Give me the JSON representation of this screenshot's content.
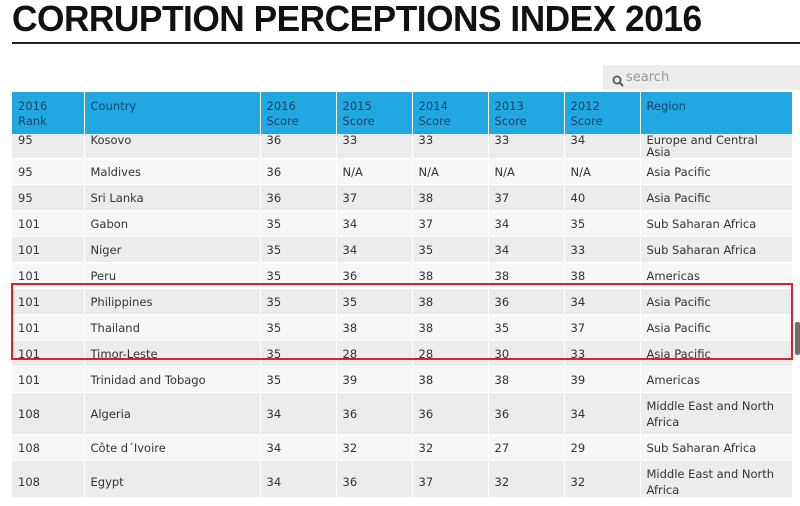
{
  "title": "CORRUPTION PERCEPTIONS INDEX 2016",
  "search": {
    "placeholder": "search"
  },
  "columns": [
    [
      "2016",
      "Rank"
    ],
    [
      "Country",
      ""
    ],
    [
      "2016",
      "Score"
    ],
    [
      "2015",
      "Score"
    ],
    [
      "2014",
      "Score"
    ],
    [
      "2013",
      "Score"
    ],
    [
      "2012",
      "Score"
    ],
    [
      "Region",
      ""
    ]
  ],
  "rows": [
    {
      "rank": "95",
      "country": "Kosovo",
      "s2016": "36",
      "s2015": "33",
      "s2014": "33",
      "s2013": "33",
      "s2012": "34",
      "region": "Europe and Central Asia"
    },
    {
      "rank": "95",
      "country": "Maldives",
      "s2016": "36",
      "s2015": "N/A",
      "s2014": "N/A",
      "s2013": "N/A",
      "s2012": "N/A",
      "region": "Asia Pacific"
    },
    {
      "rank": "95",
      "country": "Sri Lanka",
      "s2016": "36",
      "s2015": "37",
      "s2014": "38",
      "s2013": "37",
      "s2012": "40",
      "region": "Asia Pacific"
    },
    {
      "rank": "101",
      "country": "Gabon",
      "s2016": "35",
      "s2015": "34",
      "s2014": "37",
      "s2013": "34",
      "s2012": "35",
      "region": "Sub Saharan Africa"
    },
    {
      "rank": "101",
      "country": "Niger",
      "s2016": "35",
      "s2015": "34",
      "s2014": "35",
      "s2013": "34",
      "s2012": "33",
      "region": "Sub Saharan Africa"
    },
    {
      "rank": "101",
      "country": "Peru",
      "s2016": "35",
      "s2015": "36",
      "s2014": "38",
      "s2013": "38",
      "s2012": "38",
      "region": "Americas"
    },
    {
      "rank": "101",
      "country": "Philippines",
      "s2016": "35",
      "s2015": "35",
      "s2014": "38",
      "s2013": "36",
      "s2012": "34",
      "region": "Asia Pacific"
    },
    {
      "rank": "101",
      "country": "Thailand",
      "s2016": "35",
      "s2015": "38",
      "s2014": "38",
      "s2013": "35",
      "s2012": "37",
      "region": "Asia Pacific"
    },
    {
      "rank": "101",
      "country": "Timor-Leste",
      "s2016": "35",
      "s2015": "28",
      "s2014": "28",
      "s2013": "30",
      "s2012": "33",
      "region": "Asia Pacific"
    },
    {
      "rank": "101",
      "country": "Trinidad and Tobago",
      "s2016": "35",
      "s2015": "39",
      "s2014": "38",
      "s2013": "38",
      "s2012": "39",
      "region": "Americas"
    },
    {
      "rank": "108",
      "country": "Algeria",
      "s2016": "34",
      "s2015": "36",
      "s2014": "36",
      "s2013": "36",
      "s2012": "34",
      "region": "Middle East and North Africa"
    },
    {
      "rank": "108",
      "country": "Côte d´Ivoire",
      "s2016": "34",
      "s2015": "32",
      "s2014": "32",
      "s2013": "27",
      "s2012": "29",
      "region": "Sub Saharan Africa"
    },
    {
      "rank": "108",
      "country": "Egypt",
      "s2016": "34",
      "s2015": "36",
      "s2014": "37",
      "s2013": "32",
      "s2012": "32",
      "region": "Middle East and North Africa"
    }
  ],
  "colors": {
    "header_bg": "#22a8e0",
    "highlight": "#d8232a"
  }
}
